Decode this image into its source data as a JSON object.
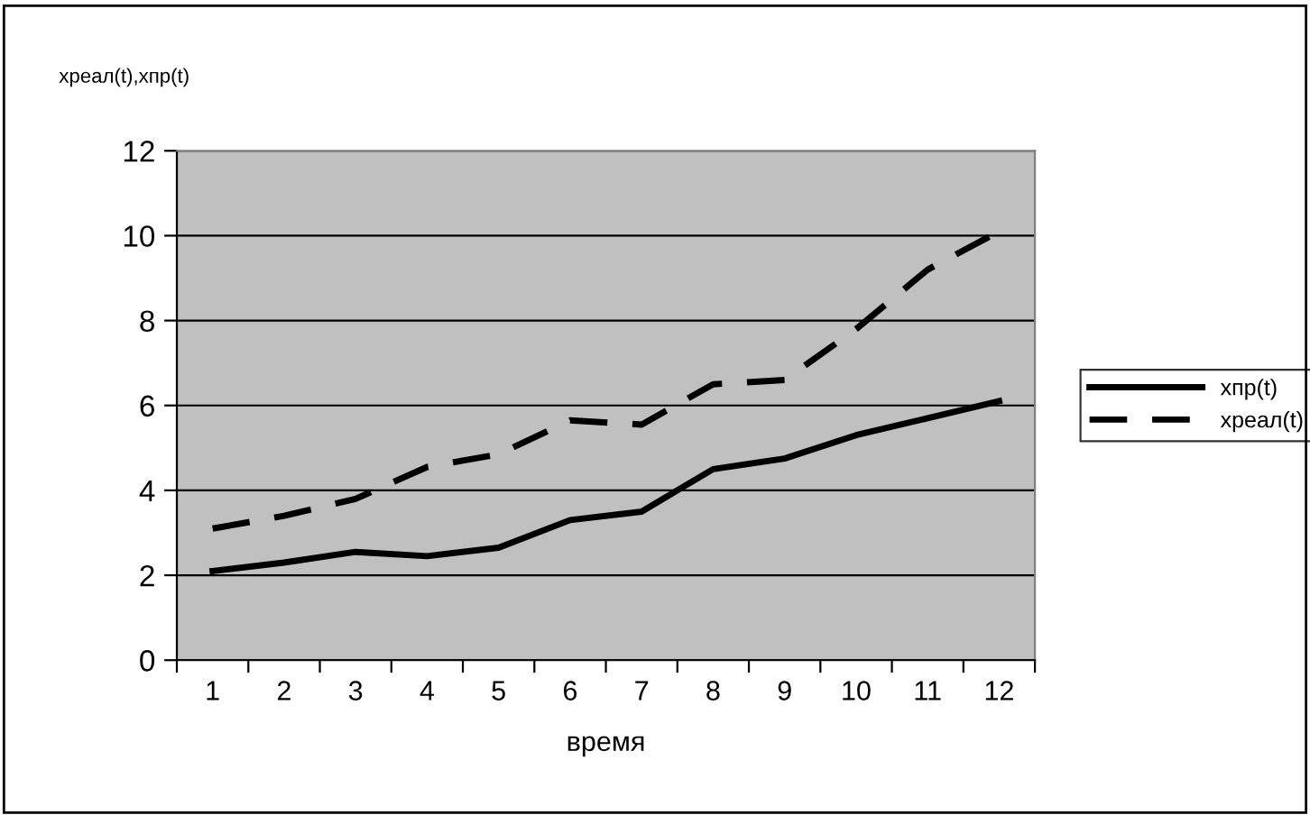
{
  "chart_data": {
    "type": "line",
    "ylabel": "xреал(t),xпр(t)",
    "xlabel": "время",
    "categories": [
      "1",
      "2",
      "3",
      "4",
      "5",
      "6",
      "7",
      "8",
      "9",
      "10",
      "11",
      "12"
    ],
    "series": [
      {
        "name": "xпр(t)",
        "color": "#000000",
        "line_style": "solid",
        "values": [
          2.1,
          2.3,
          2.55,
          2.45,
          2.65,
          3.3,
          3.5,
          4.5,
          4.75,
          5.3,
          5.7,
          6.1
        ]
      },
      {
        "name": "xреал(t)",
        "color": "#000000",
        "line_style": "dashed",
        "values": [
          3.1,
          3.4,
          3.8,
          4.55,
          4.85,
          5.65,
          5.55,
          6.5,
          6.6,
          7.8,
          9.2,
          10.1
        ]
      }
    ],
    "ylim": [
      0,
      12
    ],
    "yticks": [
      0,
      2,
      4,
      6,
      8,
      10,
      12
    ],
    "grid": "y",
    "legend": "right",
    "marker": "none"
  }
}
